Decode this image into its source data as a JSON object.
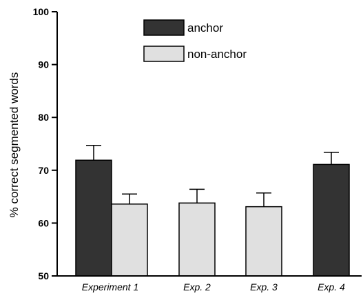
{
  "chart_data": {
    "type": "bar",
    "ylabel": "% correct segmented words",
    "ylim": [
      50,
      100
    ],
    "yticks": [
      50,
      60,
      70,
      80,
      90,
      100
    ],
    "grid": false,
    "legend_position": "top-center",
    "colors": {
      "anchor": "#333333",
      "non-anchor": "#e0e0e0",
      "edge": "#000000"
    },
    "legend": [
      {
        "name": "anchor"
      },
      {
        "name": "non-anchor"
      }
    ],
    "categories": [
      "Experiment 1",
      "Exp. 2",
      "Exp. 3",
      "Exp. 4"
    ],
    "bars": [
      {
        "category": "Experiment 1",
        "series": "anchor",
        "value": 71.9,
        "error": 2.8
      },
      {
        "category": "Experiment 1",
        "series": "non-anchor",
        "value": 63.6,
        "error": 1.9
      },
      {
        "category": "Exp. 2",
        "series": "non-anchor",
        "value": 63.8,
        "error": 2.6
      },
      {
        "category": "Exp. 3",
        "series": "non-anchor",
        "value": 63.1,
        "error": 2.6
      },
      {
        "category": "Exp. 4",
        "series": "anchor",
        "value": 71.1,
        "error": 2.3
      }
    ]
  }
}
